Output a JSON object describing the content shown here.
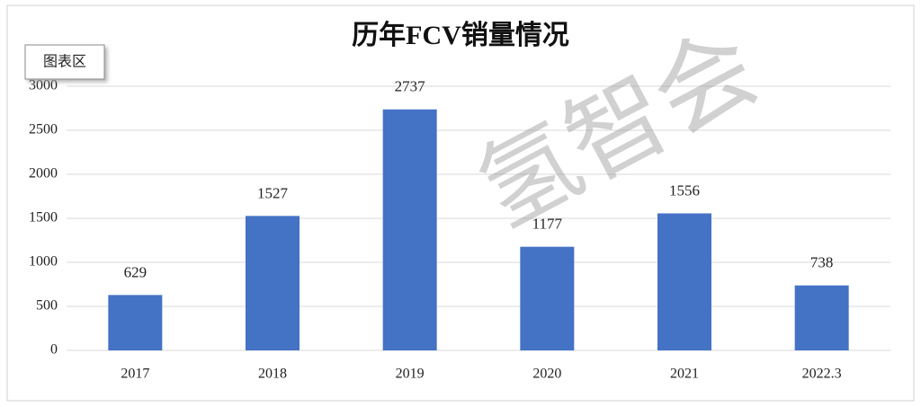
{
  "chart_data": {
    "type": "bar",
    "title": "历年FCV销量情况",
    "chart_area_label": "图表区",
    "watermark": "氢智会",
    "categories": [
      "2017",
      "2018",
      "2019",
      "2020",
      "2021",
      "2022.3"
    ],
    "values": [
      629,
      1527,
      2737,
      1177,
      1556,
      738
    ],
    "color": "#4472c4",
    "ylim": [
      0,
      3000
    ],
    "yticks": [
      0,
      500,
      1000,
      1500,
      2000,
      2500,
      3000
    ],
    "grid": true
  }
}
